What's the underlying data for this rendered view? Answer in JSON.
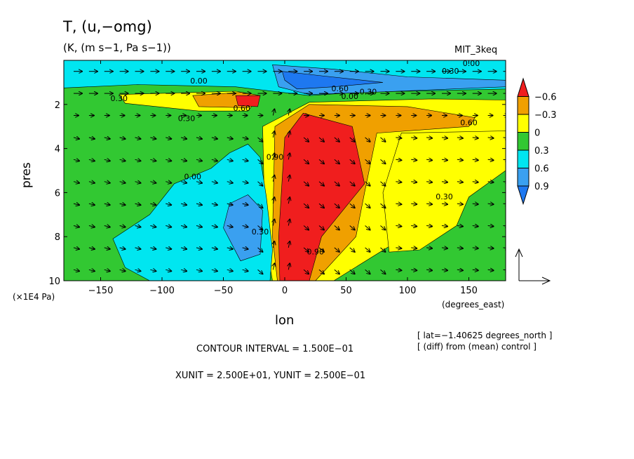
{
  "header": {
    "title": "T, (u,−omg)",
    "subtitle": "(K, (m s−1, Pa s−1))",
    "model": "MIT_3keq"
  },
  "axes": {
    "xlabel": "lon",
    "ylabel": "pres",
    "x_units": "(degrees_east)",
    "y_units": "(×1E4 Pa)"
  },
  "footer": {
    "lat_note": "[ lat=−1.40625 degrees_north ]",
    "diff_note": "[ (diff) from (mean) control ]",
    "contour_interval": "CONTOUR INTERVAL = 1.500E−01",
    "vector_units": "XUNIT = 2.500E+01, YUNIT = 2.500E−01"
  },
  "colors": {
    "c_below_m06": "#1e78f0",
    "c_m06_m03": "#3aa0f0",
    "c_m03_0": "#00e6f0",
    "c_0_03": "#32c832",
    "c_03_06": "#ffff00",
    "c_06_09": "#f0a000",
    "c_above_09": "#f01e1e"
  },
  "chart_data": {
    "type": "contour",
    "xlim": [
      -180,
      180
    ],
    "ylim": [
      10,
      0
    ],
    "x_ticks": [
      -150,
      -100,
      -50,
      0,
      50,
      100,
      150
    ],
    "x_tick_labels": [
      "−150",
      "−100",
      "−50",
      "0",
      "50",
      "100",
      "150"
    ],
    "y_ticks": [
      2,
      4,
      6,
      8,
      10
    ],
    "colorbar": {
      "levels": [
        -0.6,
        -0.3,
        0,
        0.3,
        0.6,
        0.9
      ],
      "labels": [
        "−0.6",
        "−0.3",
        "0",
        "0.3",
        "0.6",
        "0.9"
      ]
    },
    "contour_labels": [
      {
        "text": "0.00",
        "x": -70,
        "y": 1.05
      },
      {
        "text": "0.30",
        "x": -135,
        "y": 1.85
      },
      {
        "text": "0.60",
        "x": -35,
        "y": 2.3
      },
      {
        "text": "0.30",
        "x": -80,
        "y": 2.75
      },
      {
        "text": "0.00",
        "x": -75,
        "y": 5.4
      },
      {
        "text": "0.30",
        "x": -20,
        "y": 7.9
      },
      {
        "text": "0.90",
        "x": 25,
        "y": 8.8
      },
      {
        "text": "0.60",
        "x": 45,
        "y": 1.4
      },
      {
        "text": "0.30",
        "x": 68,
        "y": 1.55
      },
      {
        "text": "0.00",
        "x": 53,
        "y": 1.75
      },
      {
        "text": "0.30",
        "x": 135,
        "y": 0.6
      },
      {
        "text": "0.00",
        "x": 152,
        "y": 0.25
      },
      {
        "text": "0.60",
        "x": 150,
        "y": 2.95
      },
      {
        "text": "0.30",
        "x": 130,
        "y": 6.3
      },
      {
        "text": "0.90",
        "x": -8,
        "y": 4.5
      }
    ]
  }
}
